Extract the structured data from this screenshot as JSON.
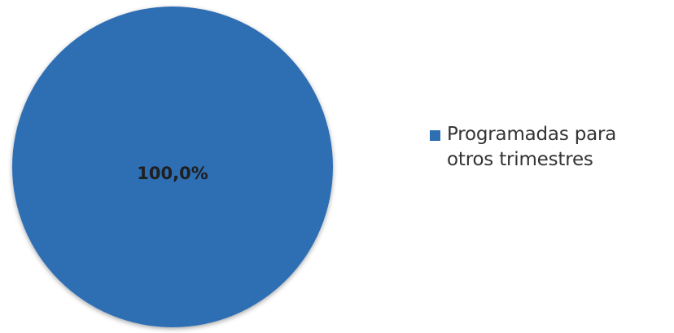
{
  "chart_data": {
    "type": "pie",
    "title": "",
    "slices": [
      {
        "label": "Programadas para otros trimestres",
        "value": 100.0,
        "data_label": "100,0%",
        "color": "#2e6eb3"
      }
    ],
    "legend_position": "right"
  }
}
